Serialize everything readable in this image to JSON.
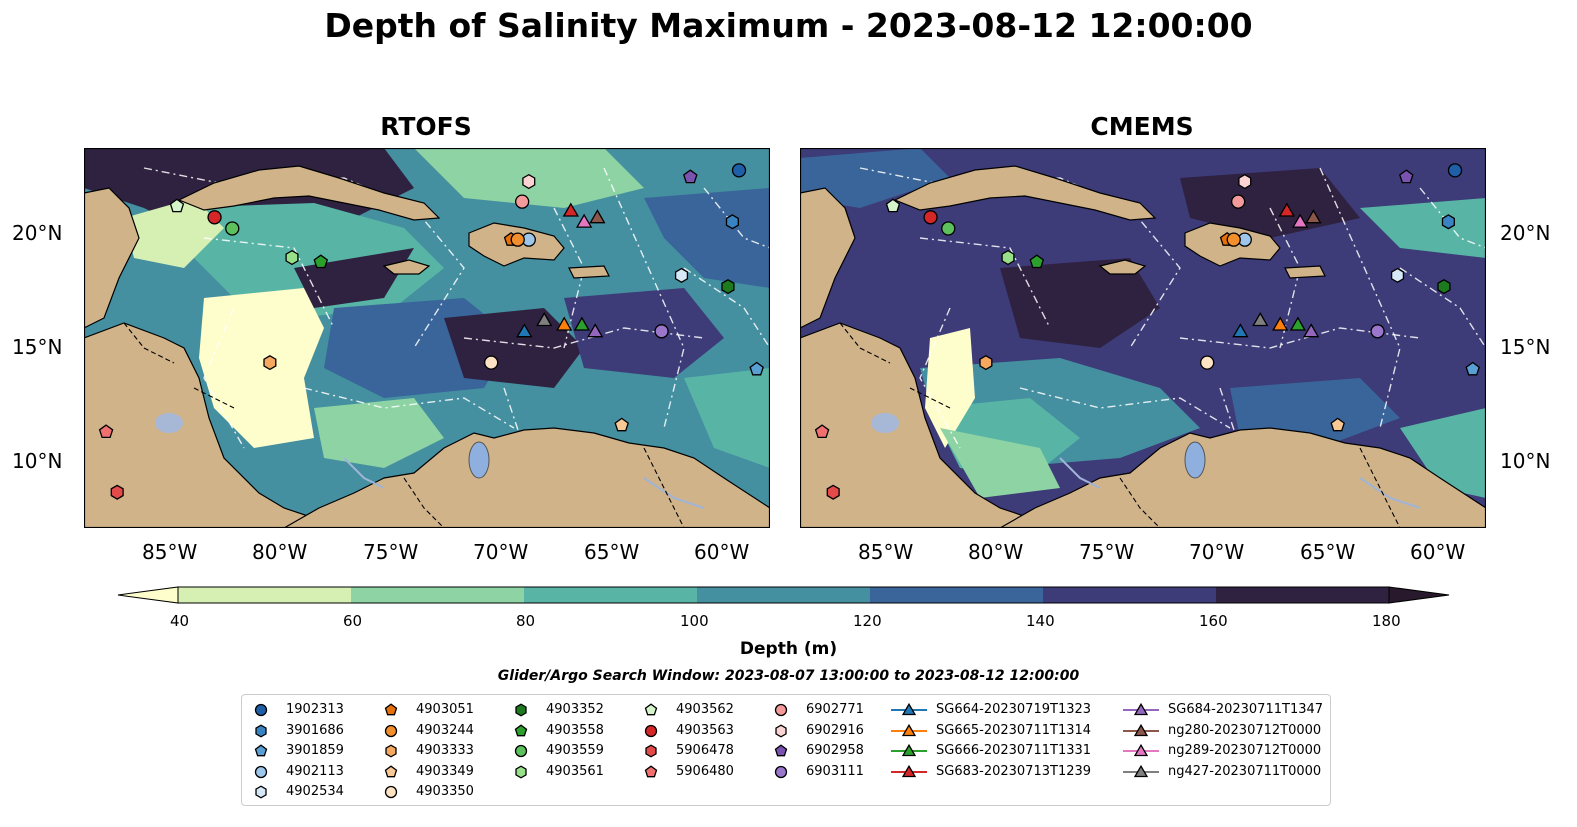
{
  "title": "Depth of Salinity Maximum - 2023-08-12 12:00:00",
  "panels": [
    {
      "name": "RTOFS"
    },
    {
      "name": "CMEMS"
    }
  ],
  "lat_ticks": [
    "20°N",
    "15°N",
    "10°N"
  ],
  "lon_ticks": [
    "85°W",
    "80°W",
    "75°W",
    "70°W",
    "65°W",
    "60°W"
  ],
  "map_extent": {
    "lon": [
      -89,
      -58
    ],
    "lat": [
      7,
      24
    ]
  },
  "colorbar": {
    "title": "Depth (m)",
    "ticks": [
      "40",
      "60",
      "80",
      "100",
      "120",
      "140",
      "160",
      "180"
    ],
    "colors": [
      "#fdfecc",
      "#d6efb3",
      "#8dd3a3",
      "#58b5a6",
      "#448fa0",
      "#39659a",
      "#3d3b78",
      "#2e2240",
      "#281a2c"
    ],
    "extend": "both"
  },
  "search_window": "Glider/Argo Search Window: 2023-08-07 13:00:00 to 2023-08-12 12:00:00",
  "legend": {
    "columns": [
      [
        {
          "label": "1902313",
          "marker": "circle",
          "color": "#1f5fa8"
        },
        {
          "label": "3901686",
          "marker": "hexagon",
          "color": "#3a83c2"
        },
        {
          "label": "3901859",
          "marker": "pentagon",
          "color": "#5a9fd4"
        },
        {
          "label": "4902113",
          "marker": "circle",
          "color": "#9dc6ea"
        },
        {
          "label": "4902534",
          "marker": "hexagon",
          "color": "#d6e8f7"
        }
      ],
      [
        {
          "label": "4903051",
          "marker": "pentagon",
          "color": "#e6700a"
        },
        {
          "label": "4903244",
          "marker": "circle",
          "color": "#f28e2b"
        },
        {
          "label": "4903333",
          "marker": "hexagon",
          "color": "#f5a860"
        },
        {
          "label": "4903349",
          "marker": "pentagon",
          "color": "#f9c995"
        },
        {
          "label": "4903350",
          "marker": "circle",
          "color": "#fde2c4"
        }
      ],
      [
        {
          "label": "4903352",
          "marker": "hexagon",
          "color": "#1e7a1e"
        },
        {
          "label": "4903558",
          "marker": "pentagon",
          "color": "#2ca02c"
        },
        {
          "label": "4903559",
          "marker": "circle",
          "color": "#5cc05c"
        },
        {
          "label": "4903561",
          "marker": "hexagon",
          "color": "#98df8a"
        },
        {
          "label": "",
          "marker": "none",
          "color": "#ffffff"
        }
      ],
      [
        {
          "label": "4903562",
          "marker": "pentagon",
          "color": "#d4f5cc"
        },
        {
          "label": "4903563",
          "marker": "circle",
          "color": "#d62728"
        },
        {
          "label": "5906478",
          "marker": "hexagon",
          "color": "#e34a4a"
        },
        {
          "label": "5906480",
          "marker": "pentagon",
          "color": "#f07070"
        },
        {
          "label": "",
          "marker": "none",
          "color": "#ffffff"
        }
      ],
      [
        {
          "label": "6902771",
          "marker": "circle",
          "color": "#f59a9a"
        },
        {
          "label": "6902916",
          "marker": "hexagon",
          "color": "#fbd3d3"
        },
        {
          "label": "6902958",
          "marker": "pentagon",
          "color": "#7a52b0"
        },
        {
          "label": "6903111",
          "marker": "circle",
          "color": "#9b77cc"
        },
        {
          "label": "",
          "marker": "none",
          "color": "#ffffff"
        }
      ],
      [
        {
          "label": "SG664-20230719T1323",
          "marker": "triangle",
          "color": "#1f77b4"
        },
        {
          "label": "SG665-20230711T1314",
          "marker": "triangle",
          "color": "#ff7f0e"
        },
        {
          "label": "SG666-20230711T1331",
          "marker": "triangle",
          "color": "#2ca02c"
        },
        {
          "label": "SG683-20230713T1239",
          "marker": "triangle",
          "color": "#d62728"
        },
        {
          "label": "",
          "marker": "none",
          "color": "#ffffff"
        }
      ],
      [
        {
          "label": "SG684-20230711T1347",
          "marker": "triangle",
          "color": "#9467bd"
        },
        {
          "label": "ng280-20230712T0000",
          "marker": "triangle",
          "color": "#8c564b"
        },
        {
          "label": "ng289-20230712T0000",
          "marker": "triangle",
          "color": "#e377c2"
        },
        {
          "label": "ng427-20230711T0000",
          "marker": "triangle",
          "color": "#7f7f7f"
        },
        {
          "label": "",
          "marker": "none",
          "color": "#ffffff"
        }
      ]
    ]
  },
  "observations": [
    {
      "id": "1902313",
      "lon": -59.4,
      "lat": 23.0
    },
    {
      "id": "3901686",
      "lon": -59.7,
      "lat": 20.7
    },
    {
      "id": "3901859",
      "lon": -58.6,
      "lat": 14.1
    },
    {
      "id": "4902113",
      "lon": -68.9,
      "lat": 19.9
    },
    {
      "id": "4902534",
      "lon": -62.0,
      "lat": 18.3
    },
    {
      "id": "4903051",
      "lon": -69.7,
      "lat": 19.9
    },
    {
      "id": "4903244",
      "lon": -69.4,
      "lat": 19.9
    },
    {
      "id": "4903333",
      "lon": -80.6,
      "lat": 14.4
    },
    {
      "id": "4903349",
      "lon": -64.7,
      "lat": 11.6
    },
    {
      "id": "4903350",
      "lon": -70.6,
      "lat": 14.4
    },
    {
      "id": "4903352",
      "lon": -59.9,
      "lat": 17.8
    },
    {
      "id": "4903558",
      "lon": -78.3,
      "lat": 18.9
    },
    {
      "id": "4903559",
      "lon": -82.3,
      "lat": 20.4
    },
    {
      "id": "4903561",
      "lon": -79.6,
      "lat": 19.1
    },
    {
      "id": "4903562",
      "lon": -84.8,
      "lat": 21.4
    },
    {
      "id": "4903563",
      "lon": -83.1,
      "lat": 20.9
    },
    {
      "id": "5906478",
      "lon": -87.5,
      "lat": 8.6
    },
    {
      "id": "5906480",
      "lon": -88.0,
      "lat": 11.3
    },
    {
      "id": "6902771",
      "lon": -69.2,
      "lat": 21.6
    },
    {
      "id": "6902916",
      "lon": -68.9,
      "lat": 22.5
    },
    {
      "id": "6902958",
      "lon": -61.6,
      "lat": 22.7
    },
    {
      "id": "6903111",
      "lon": -62.9,
      "lat": 15.8
    },
    {
      "id": "SG664-20230719T1323",
      "lon": -69.1,
      "lat": 15.8
    },
    {
      "id": "SG665-20230711T1314",
      "lon": -67.3,
      "lat": 16.1
    },
    {
      "id": "SG666-20230711T1331",
      "lon": -66.5,
      "lat": 16.1
    },
    {
      "id": "SG683-20230713T1239",
      "lon": -67.0,
      "lat": 21.2
    },
    {
      "id": "SG684-20230711T1347",
      "lon": -65.9,
      "lat": 15.8
    },
    {
      "id": "ng280-20230712T0000",
      "lon": -65.8,
      "lat": 20.9
    },
    {
      "id": "ng289-20230712T0000",
      "lon": -66.4,
      "lat": 20.7
    },
    {
      "id": "ng427-20230711T0000",
      "lon": -68.2,
      "lat": 16.3
    }
  ]
}
